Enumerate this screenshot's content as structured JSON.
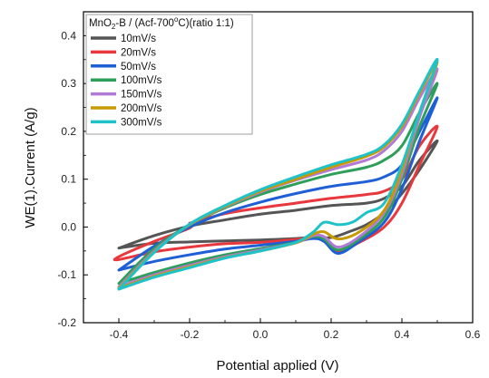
{
  "chart_data": {
    "type": "line",
    "title": "",
    "xlabel": "Potential applied (V)",
    "ylabel": "WE(1).Current (A/g)",
    "xlim": [
      -0.5,
      0.6
    ],
    "ylim": [
      -0.2,
      0.45
    ],
    "xticks": [
      "-0.4",
      "-0.2",
      "0.0",
      "0.2",
      "0.4",
      "0.6"
    ],
    "yticks": [
      "-0.2",
      "-0.1",
      "0.0",
      "0.1",
      "0.2",
      "0.3",
      "0.4"
    ],
    "grid": false,
    "legend": {
      "title_main": "MnO",
      "title_sub": "2",
      "title_rest": "-B / (Acf-700",
      "title_sup": "o",
      "title_end": "C)(ratio 1:1)",
      "placement": "top-left"
    },
    "series": [
      {
        "name": "10mV/s",
        "color": "#555555",
        "forward": [
          [
            -0.4,
            -0.044
          ],
          [
            -0.3,
            -0.034
          ],
          [
            -0.2,
            -0.031
          ],
          [
            -0.1,
            -0.029
          ],
          [
            0.0,
            -0.027
          ],
          [
            0.1,
            -0.024
          ],
          [
            0.15,
            -0.021
          ],
          [
            0.2,
            -0.022
          ],
          [
            0.25,
            -0.01
          ],
          [
            0.3,
            0.005
          ],
          [
            0.35,
            0.03
          ],
          [
            0.4,
            0.07
          ],
          [
            0.45,
            0.12
          ],
          [
            0.5,
            0.18
          ]
        ],
        "reverse": [
          [
            0.5,
            0.225
          ],
          [
            0.45,
            0.14
          ],
          [
            0.4,
            0.085
          ],
          [
            0.35,
            0.06
          ],
          [
            0.3,
            0.05
          ],
          [
            0.2,
            0.045
          ],
          [
            0.1,
            0.035
          ],
          [
            0.0,
            0.027
          ],
          [
            -0.1,
            0.015
          ],
          [
            -0.2,
            0.002
          ],
          [
            -0.3,
            -0.018
          ],
          [
            -0.4,
            -0.044
          ]
        ]
      },
      {
        "name": "20mV/s",
        "color": "#e8383d",
        "forward": [
          [
            -0.2,
            0.008
          ],
          [
            -0.2,
            -0.002
          ],
          [
            -0.3,
            -0.03
          ],
          [
            -0.4,
            -0.062
          ],
          [
            -0.4,
            -0.068
          ],
          [
            -0.3,
            -0.052
          ],
          [
            -0.2,
            -0.042
          ],
          [
            -0.1,
            -0.035
          ],
          [
            0.0,
            -0.032
          ],
          [
            0.1,
            -0.026
          ],
          [
            0.15,
            -0.022
          ],
          [
            0.18,
            -0.03
          ],
          [
            0.22,
            -0.05
          ],
          [
            0.28,
            -0.032
          ],
          [
            0.35,
            0.0
          ],
          [
            0.4,
            0.05
          ],
          [
            0.45,
            0.13
          ],
          [
            0.5,
            0.21
          ]
        ],
        "reverse": [
          [
            0.5,
            0.26
          ],
          [
            0.45,
            0.17
          ],
          [
            0.4,
            0.1
          ],
          [
            0.35,
            0.075
          ],
          [
            0.3,
            0.068
          ],
          [
            0.2,
            0.06
          ],
          [
            0.1,
            0.05
          ],
          [
            0.0,
            0.04
          ],
          [
            -0.1,
            0.028
          ],
          [
            -0.2,
            0.008
          ]
        ]
      },
      {
        "name": "50mV/s",
        "color": "#1f5fd6",
        "forward": [
          [
            -0.4,
            -0.09
          ],
          [
            -0.3,
            -0.072
          ],
          [
            -0.2,
            -0.058
          ],
          [
            -0.1,
            -0.046
          ],
          [
            0.0,
            -0.038
          ],
          [
            0.1,
            -0.03
          ],
          [
            0.15,
            -0.024
          ],
          [
            0.18,
            -0.03
          ],
          [
            0.22,
            -0.055
          ],
          [
            0.28,
            -0.03
          ],
          [
            0.35,
            0.01
          ],
          [
            0.4,
            0.08
          ],
          [
            0.45,
            0.18
          ],
          [
            0.5,
            0.27
          ]
        ],
        "reverse": [
          [
            0.5,
            0.31
          ],
          [
            0.45,
            0.2
          ],
          [
            0.4,
            0.13
          ],
          [
            0.35,
            0.105
          ],
          [
            0.3,
            0.095
          ],
          [
            0.2,
            0.085
          ],
          [
            0.1,
            0.07
          ],
          [
            0.0,
            0.052
          ],
          [
            -0.1,
            0.03
          ],
          [
            -0.2,
            0.0
          ],
          [
            -0.3,
            -0.04
          ],
          [
            -0.4,
            -0.09
          ]
        ]
      },
      {
        "name": "100mV/s",
        "color": "#2e9e5b",
        "forward": [
          [
            -0.4,
            -0.118
          ],
          [
            -0.3,
            -0.095
          ],
          [
            -0.2,
            -0.075
          ],
          [
            -0.1,
            -0.058
          ],
          [
            0.0,
            -0.045
          ],
          [
            0.1,
            -0.032
          ],
          [
            0.15,
            -0.02
          ],
          [
            0.18,
            -0.025
          ],
          [
            0.22,
            -0.048
          ],
          [
            0.28,
            -0.025
          ],
          [
            0.35,
            0.02
          ],
          [
            0.4,
            0.1
          ],
          [
            0.45,
            0.21
          ],
          [
            0.5,
            0.3
          ]
        ],
        "reverse": [
          [
            0.5,
            0.34
          ],
          [
            0.45,
            0.24
          ],
          [
            0.4,
            0.17
          ],
          [
            0.35,
            0.14
          ],
          [
            0.3,
            0.125
          ],
          [
            0.2,
            0.11
          ],
          [
            0.1,
            0.09
          ],
          [
            0.0,
            0.068
          ],
          [
            -0.1,
            0.04
          ],
          [
            -0.2,
            0.005
          ],
          [
            -0.3,
            -0.045
          ],
          [
            -0.4,
            -0.118
          ]
        ]
      },
      {
        "name": "150mV/s",
        "color": "#b07ad6",
        "forward": [
          [
            -0.4,
            -0.125
          ],
          [
            -0.3,
            -0.1
          ],
          [
            -0.2,
            -0.08
          ],
          [
            -0.1,
            -0.062
          ],
          [
            0.0,
            -0.048
          ],
          [
            0.1,
            -0.033
          ],
          [
            0.15,
            -0.018
          ],
          [
            0.18,
            -0.02
          ],
          [
            0.22,
            -0.042
          ],
          [
            0.28,
            -0.02
          ],
          [
            0.35,
            0.03
          ],
          [
            0.4,
            0.11
          ],
          [
            0.45,
            0.23
          ],
          [
            0.5,
            0.33
          ]
        ],
        "reverse": [
          [
            0.5,
            0.36
          ],
          [
            0.45,
            0.27
          ],
          [
            0.4,
            0.2
          ],
          [
            0.35,
            0.16
          ],
          [
            0.3,
            0.14
          ],
          [
            0.2,
            0.12
          ],
          [
            0.1,
            0.098
          ],
          [
            0.0,
            0.073
          ],
          [
            -0.1,
            0.042
          ],
          [
            -0.2,
            0.005
          ],
          [
            -0.3,
            -0.05
          ],
          [
            -0.4,
            -0.125
          ]
        ]
      },
      {
        "name": "200mV/s",
        "color": "#c79a00",
        "forward": [
          [
            -0.4,
            -0.128
          ],
          [
            -0.3,
            -0.103
          ],
          [
            -0.2,
            -0.083
          ],
          [
            -0.1,
            -0.064
          ],
          [
            0.0,
            -0.05
          ],
          [
            0.1,
            -0.033
          ],
          [
            0.15,
            -0.015
          ],
          [
            0.18,
            -0.01
          ],
          [
            0.22,
            -0.025
          ],
          [
            0.28,
            -0.01
          ],
          [
            0.35,
            0.035
          ],
          [
            0.4,
            0.12
          ],
          [
            0.45,
            0.24
          ],
          [
            0.5,
            0.345
          ]
        ],
        "reverse": [
          [
            0.5,
            0.37
          ],
          [
            0.45,
            0.28
          ],
          [
            0.4,
            0.21
          ],
          [
            0.35,
            0.168
          ],
          [
            0.3,
            0.148
          ],
          [
            0.2,
            0.125
          ],
          [
            0.1,
            0.1
          ],
          [
            0.0,
            0.075
          ],
          [
            -0.1,
            0.043
          ],
          [
            -0.2,
            0.005
          ],
          [
            -0.3,
            -0.052
          ],
          [
            -0.4,
            -0.128
          ]
        ]
      },
      {
        "name": "300mV/s",
        "color": "#1fc2c8",
        "forward": [
          [
            -0.4,
            -0.13
          ],
          [
            -0.3,
            -0.105
          ],
          [
            -0.2,
            -0.085
          ],
          [
            -0.1,
            -0.065
          ],
          [
            0.0,
            -0.05
          ],
          [
            0.1,
            -0.032
          ],
          [
            0.15,
            -0.01
          ],
          [
            0.18,
            0.01
          ],
          [
            0.22,
            0.005
          ],
          [
            0.26,
            0.01
          ],
          [
            0.3,
            0.03
          ],
          [
            0.35,
            0.05
          ],
          [
            0.4,
            0.13
          ],
          [
            0.45,
            0.24
          ],
          [
            0.5,
            0.35
          ]
        ],
        "reverse": [
          [
            0.5,
            0.36
          ],
          [
            0.45,
            0.285
          ],
          [
            0.4,
            0.215
          ],
          [
            0.35,
            0.172
          ],
          [
            0.3,
            0.152
          ],
          [
            0.2,
            0.13
          ],
          [
            0.1,
            0.105
          ],
          [
            0.0,
            0.078
          ],
          [
            -0.1,
            0.045
          ],
          [
            -0.2,
            0.006
          ],
          [
            -0.3,
            -0.053
          ],
          [
            -0.4,
            -0.13
          ]
        ]
      }
    ]
  }
}
